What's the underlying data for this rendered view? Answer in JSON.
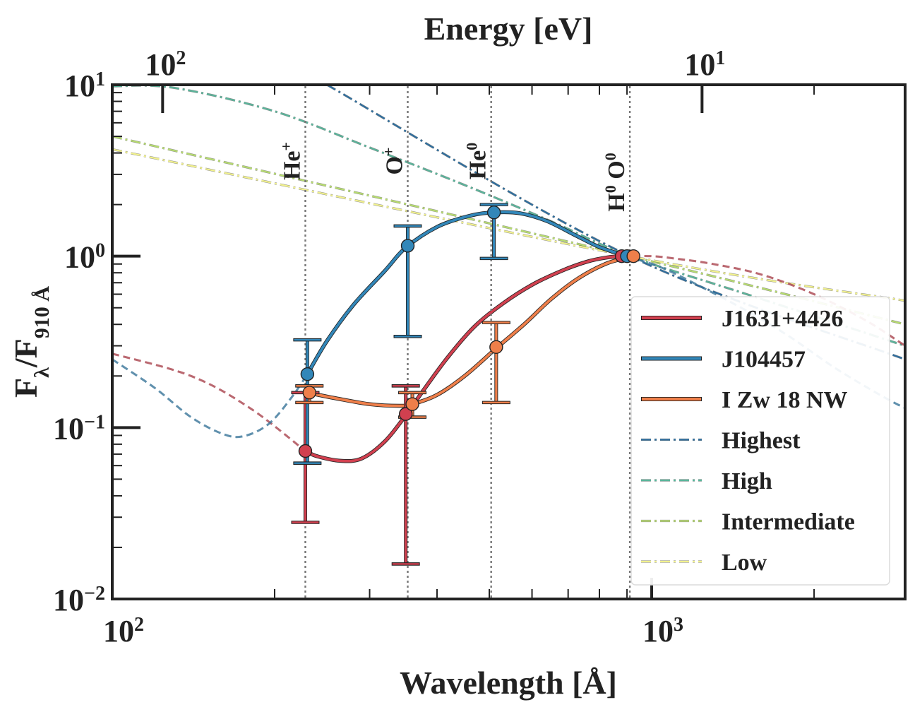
{
  "chart_data": {
    "type": "line",
    "xlabel": "Wavelength [Å]",
    "ylabel": "Fλ/F910 Å",
    "top_xlabel": "Energy [eV]",
    "xscale": "log",
    "yscale": "log",
    "xlim": [
      100,
      2950
    ],
    "ylim": [
      0.01,
      10
    ],
    "x_ticks": [
      {
        "value": 100,
        "base": "10",
        "exp": "2"
      },
      {
        "value": 1000,
        "base": "10",
        "exp": "3"
      }
    ],
    "y_ticks": [
      {
        "value": 10,
        "base": "10",
        "exp": "1"
      },
      {
        "value": 1,
        "base": "10",
        "exp": "0"
      },
      {
        "value": 0.1,
        "base": "10",
        "exp": "−1"
      },
      {
        "value": 0.01,
        "base": "10",
        "exp": "−2"
      }
    ],
    "top_ticks": [
      {
        "energy_ev": 100,
        "wavelength": 123.98,
        "base": "10",
        "exp": "2"
      },
      {
        "energy_ev": 10,
        "wavelength": 1239.8,
        "base": "10",
        "exp": "1"
      }
    ],
    "ion_edges": [
      {
        "wavelength": 228,
        "label": "He",
        "sup": "+"
      },
      {
        "wavelength": 353,
        "label": "O",
        "sup": "+"
      },
      {
        "wavelength": 504,
        "label": "He",
        "sup": "0"
      },
      {
        "wavelength": 911,
        "label": "H",
        "sup": "0",
        "label2": "O",
        "sup2": "0"
      }
    ],
    "series": [
      {
        "name": "J1631+4426",
        "color": "#d1404f",
        "style": "solid",
        "curve": [
          [
            228,
            0.073
          ],
          [
            240,
            0.068
          ],
          [
            265,
            0.064
          ],
          [
            290,
            0.066
          ],
          [
            320,
            0.083
          ],
          [
            350,
            0.118
          ],
          [
            380,
            0.17
          ],
          [
            420,
            0.26
          ],
          [
            470,
            0.39
          ],
          [
            530,
            0.53
          ],
          [
            600,
            0.68
          ],
          [
            680,
            0.82
          ],
          [
            760,
            0.93
          ],
          [
            830,
            0.985
          ],
          [
            880,
            1.0
          ]
        ],
        "points": [
          [
            228,
            0.073
          ],
          [
            350,
            0.12
          ],
          [
            880,
            1.0
          ]
        ],
        "errors": [
          [
            228,
            0.028,
            0.16
          ],
          [
            350,
            0.016,
            0.175
          ]
        ],
        "extrap_left": [
          [
            100,
            0.27
          ],
          [
            140,
            0.2
          ],
          [
            180,
            0.13
          ],
          [
            228,
            0.073
          ]
        ],
        "extrap_right": [
          [
            880,
            1.0
          ],
          [
            1000,
            1.0
          ],
          [
            1100,
            0.97
          ],
          [
            1300,
            0.9
          ],
          [
            1600,
            0.78
          ],
          [
            2000,
            0.6
          ],
          [
            2500,
            0.42
          ],
          [
            2950,
            0.3
          ]
        ]
      },
      {
        "name": "J104457",
        "color": "#3287b9",
        "style": "solid",
        "curve": [
          [
            230,
            0.205
          ],
          [
            250,
            0.32
          ],
          [
            280,
            0.52
          ],
          [
            320,
            0.82
          ],
          [
            350,
            1.12
          ],
          [
            400,
            1.48
          ],
          [
            460,
            1.72
          ],
          [
            510,
            1.8
          ],
          [
            570,
            1.78
          ],
          [
            640,
            1.6
          ],
          [
            720,
            1.33
          ],
          [
            800,
            1.13
          ],
          [
            900,
            1.0
          ]
        ],
        "points": [
          [
            230,
            0.205
          ],
          [
            353,
            1.15
          ],
          [
            510,
            1.8
          ],
          [
            900,
            1.0
          ]
        ],
        "errors": [
          [
            230,
            0.062,
            0.325
          ],
          [
            353,
            0.34,
            1.5
          ],
          [
            510,
            0.97,
            2.0
          ]
        ],
        "extrap_left": [
          [
            100,
            0.25
          ],
          [
            120,
            0.17
          ],
          [
            140,
            0.115
          ],
          [
            160,
            0.092
          ],
          [
            175,
            0.089
          ],
          [
            195,
            0.105
          ],
          [
            215,
            0.15
          ],
          [
            230,
            0.205
          ]
        ],
        "extrap_right": [
          [
            900,
            1.0
          ],
          [
            1050,
            0.85
          ],
          [
            1250,
            0.65
          ],
          [
            1500,
            0.48
          ],
          [
            1800,
            0.34
          ],
          [
            2200,
            0.22
          ],
          [
            2700,
            0.15
          ],
          [
            2950,
            0.13
          ]
        ]
      },
      {
        "name": "I Zw 18 NW",
        "color": "#ef7f4a",
        "style": "solid",
        "curve": [
          [
            230,
            0.16
          ],
          [
            260,
            0.148
          ],
          [
            300,
            0.137
          ],
          [
            340,
            0.134
          ],
          [
            360,
            0.137
          ],
          [
            400,
            0.155
          ],
          [
            450,
            0.2
          ],
          [
            515,
            0.29
          ],
          [
            580,
            0.4
          ],
          [
            650,
            0.56
          ],
          [
            730,
            0.74
          ],
          [
            820,
            0.9
          ],
          [
            900,
            0.98
          ],
          [
            925,
            1.0
          ]
        ],
        "points": [
          [
            232,
            0.16
          ],
          [
            360,
            0.137
          ],
          [
            515,
            0.295
          ],
          [
            925,
            1.0
          ]
        ],
        "errors": [
          [
            232,
            0.14,
            0.175
          ],
          [
            360,
            0.115,
            0.16
          ],
          [
            515,
            0.14,
            0.41
          ]
        ],
        "extrap_left": [],
        "extrap_right": []
      },
      {
        "name": "Highest",
        "color": "#2f6f9f",
        "style": "dashdot",
        "curve": [
          [
            250,
            10.0
          ],
          [
            911,
            1.0
          ],
          [
            2950,
            0.25
          ]
        ]
      },
      {
        "name": "High",
        "color": "#5ab59b",
        "style": "dashdot",
        "curve": [
          [
            100,
            9.8
          ],
          [
            130,
            9.6
          ],
          [
            200,
            7.0
          ],
          [
            300,
            4.3
          ],
          [
            450,
            2.6
          ],
          [
            650,
            1.6
          ],
          [
            911,
            1.0
          ],
          [
            1500,
            0.6
          ],
          [
            2950,
            0.3
          ]
        ]
      },
      {
        "name": "Intermediate",
        "color": "#b7dc6f",
        "style": "dashdot",
        "curve": [
          [
            100,
            5.0
          ],
          [
            911,
            1.0
          ],
          [
            2950,
            0.4
          ]
        ]
      },
      {
        "name": "Low",
        "color": "#f2f28e",
        "style": "dashdot",
        "curve": [
          [
            100,
            4.2
          ],
          [
            911,
            1.0
          ],
          [
            2950,
            0.55
          ]
        ]
      }
    ]
  }
}
